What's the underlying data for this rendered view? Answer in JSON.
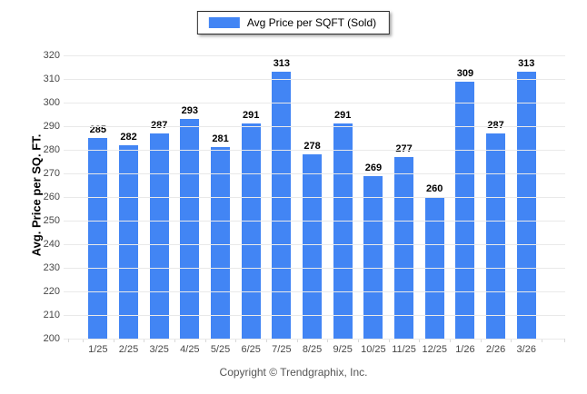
{
  "legend": {
    "label": "Avg Price per SQFT (Sold)",
    "swatch_color": "#4285f4"
  },
  "y_axis": {
    "title": "Avg. Price per SQ. FT.",
    "ticks": [
      "320",
      "310",
      "300",
      "290",
      "280",
      "270",
      "260",
      "250",
      "240",
      "230",
      "220",
      "210",
      "200"
    ]
  },
  "footer": {
    "copyright": "Copyright © Trendgraphix, Inc."
  },
  "chart_data": {
    "type": "bar",
    "title": "Avg Price per SQFT (Sold)",
    "series_name": "Avg Price per SQFT (Sold)",
    "categories": [
      "1/25",
      "2/25",
      "3/25",
      "4/25",
      "5/25",
      "6/25",
      "7/25",
      "8/25",
      "9/25",
      "10/25",
      "11/25",
      "12/25",
      "1/26",
      "2/26",
      "3/26"
    ],
    "values": [
      285,
      282,
      287,
      293,
      281,
      291,
      313,
      278,
      291,
      269,
      277,
      260,
      309,
      287,
      313
    ],
    "xlabel": "",
    "ylabel": "Avg. Price per SQ. FT.",
    "ylim": [
      200,
      320
    ],
    "ytick_step": 10,
    "grid": true,
    "value_labels": true,
    "bar_color": "#4285f4",
    "legend_position": "top"
  }
}
